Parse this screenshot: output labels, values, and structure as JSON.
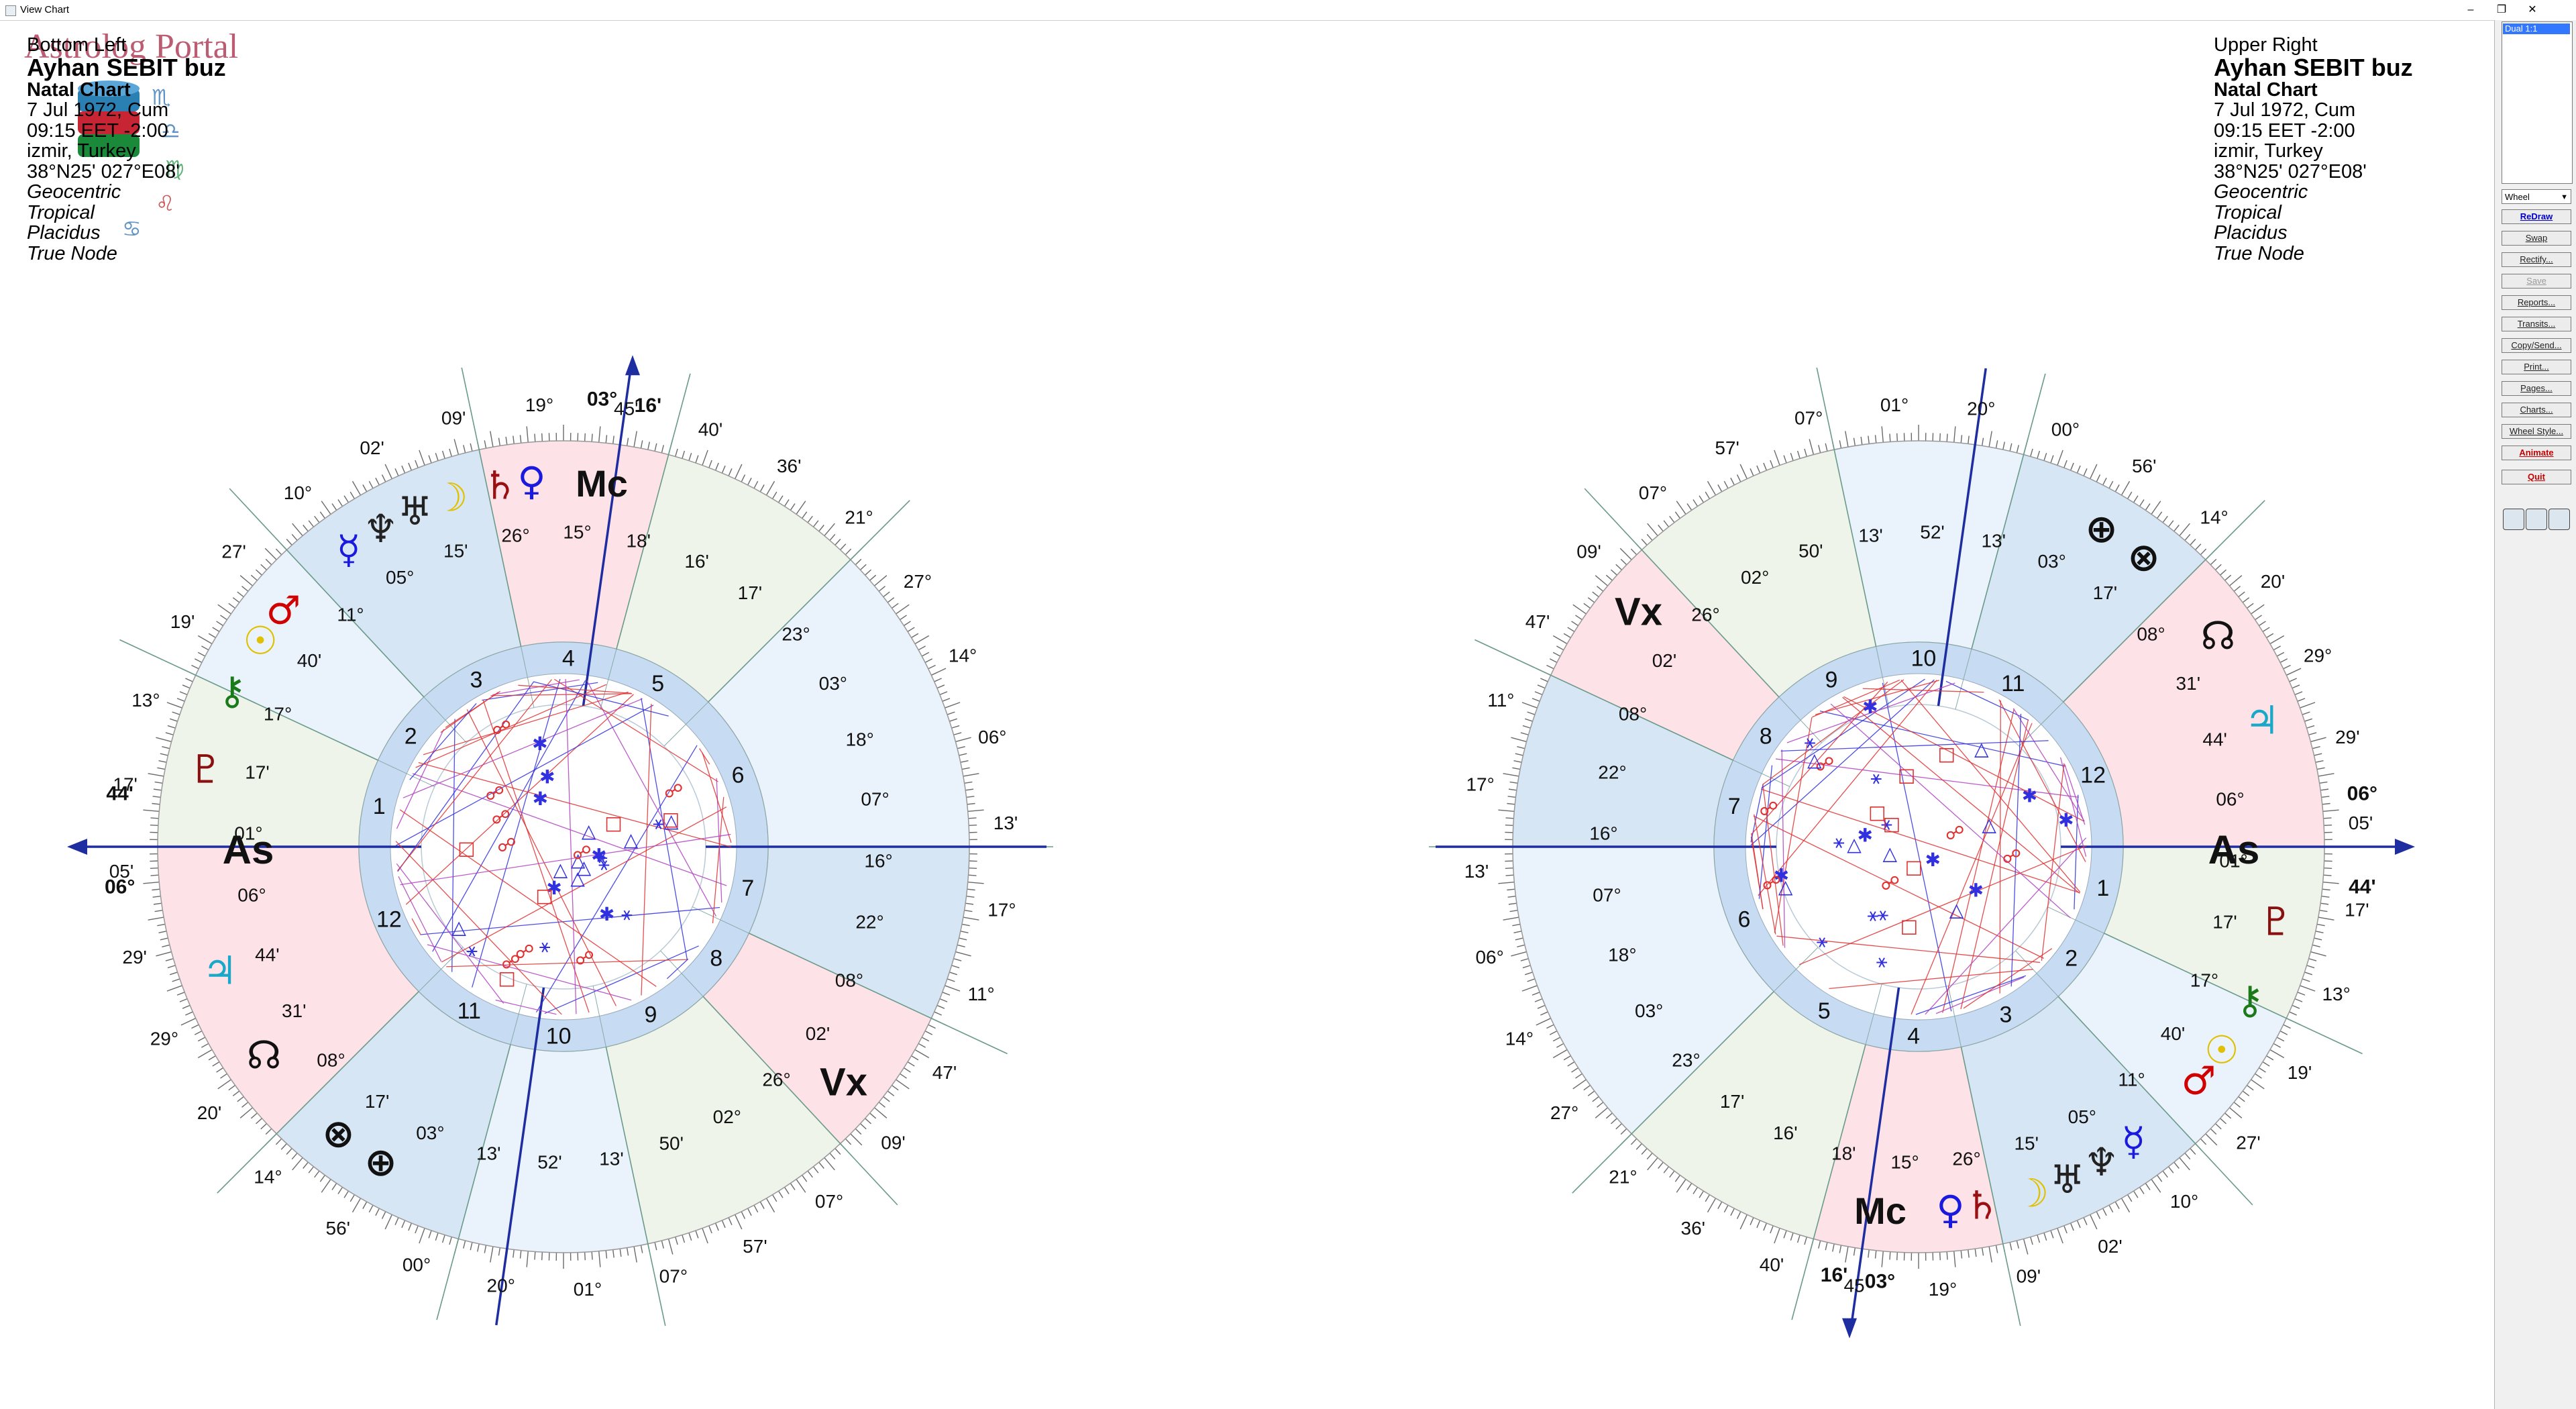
{
  "window": {
    "title": "View Chart",
    "minimize": "–",
    "restore": "❐",
    "close": "✕"
  },
  "logo": {
    "text": "Astrolog Portal"
  },
  "left_info": {
    "position_label": "Bottom Left",
    "name": "Ayhan SEBIT buz",
    "chart_type": "Natal Chart",
    "date": "7 Jul 1972, Cum",
    "time": "09:15  EET -2:00",
    "place": "izmir, Turkey",
    "coords": "38°N25' 027°E08'",
    "zodiac_view": "Geocentric",
    "zodiac": "Tropical",
    "houses": "Placidus",
    "node": "True Node"
  },
  "right_info": {
    "position_label": "Upper Right",
    "name": "Ayhan SEBIT buz",
    "chart_type": "Natal Chart",
    "date": "7 Jul 1972, Cum",
    "time": "09:15  EET -2:00",
    "place": "izmir, Turkey",
    "coords": "38°N25' 027°E08'",
    "zodiac_view": "Geocentric",
    "zodiac": "Tropical",
    "houses": "Placidus",
    "node": "True Node"
  },
  "panel": {
    "list_selected": "Dual 1:1",
    "view_select": "Wheel",
    "buttons": [
      {
        "label": "ReDraw",
        "style": "blue"
      },
      {
        "label": "Swap",
        "style": ""
      },
      {
        "label": "Rectify...",
        "style": ""
      },
      {
        "label": "Save",
        "style": "dis"
      },
      {
        "label": "Reports...",
        "style": ""
      },
      {
        "label": "Transits...",
        "style": ""
      },
      {
        "label": "Copy/Send...",
        "style": ""
      },
      {
        "label": "Print...",
        "style": ""
      },
      {
        "label": "Pages...",
        "style": ""
      },
      {
        "label": "Charts...",
        "style": ""
      },
      {
        "label": "Wheel Style...",
        "style": ""
      },
      {
        "label": "Animate",
        "style": "red"
      },
      {
        "label": "Quit",
        "style": "red"
      }
    ]
  },
  "colors": {
    "fire": "#fde2e8",
    "earth": "#eef4ea",
    "air": "#eaf2fb",
    "water": "#d7e6f4",
    "ring": "#c7dcf2",
    "axis": "#1e2da0",
    "planet_red": "#d00000",
    "planet_blue": "#1a1adf",
    "aspect_red": "#e03030",
    "aspect_blue": "#3030e0"
  },
  "charts": [
    {
      "id": "left",
      "houses": [
        "1",
        "2",
        "3",
        "4",
        "5",
        "6",
        "7",
        "8",
        "9",
        "10",
        "11",
        "12"
      ],
      "asc_text": "As",
      "mc_text": "Mc",
      "vx_text": "Vx",
      "asc_degree": "06°",
      "asc_minute": "44'",
      "mc_degree": "03°",
      "mc_minute": "16'",
      "labels": [
        "♀",
        "♄",
        "☽",
        "♅",
        "♆",
        "☿",
        "♂",
        "☉",
        "⚷",
        "♇",
        "♃",
        "☊",
        "⊗",
        "⊕"
      ],
      "numbers": [
        "18°",
        "14°",
        "03°",
        "27°",
        "23°",
        "21°",
        "17'",
        "36'",
        "16'",
        "40'",
        "18'",
        "45'",
        "15°",
        "19°",
        "26°",
        "09'",
        "15'",
        "02'",
        "05°",
        "10°",
        "11°",
        "27'",
        "40'",
        "19'",
        "17°",
        "13°",
        "17'",
        "17'",
        "01°",
        "05'",
        "06°",
        "29'",
        "44'",
        "29°",
        "31'",
        "20'",
        "08°",
        "14°",
        "17'",
        "56'",
        "03°",
        "00°",
        "13'",
        "20°",
        "52'",
        "01°",
        "13'",
        "07°",
        "50'",
        "57'",
        "02°",
        "07°",
        "26°",
        "09'",
        "02'",
        "47'",
        "08°",
        "11°",
        "22°",
        "17°",
        "16°",
        "13'",
        "07°",
        "06°"
      ]
    },
    {
      "id": "right",
      "houses": [
        "1",
        "2",
        "3",
        "4",
        "5",
        "6",
        "7",
        "8",
        "9",
        "10",
        "11",
        "12"
      ],
      "asc_text": "As",
      "mc_text": "Mc",
      "vx_text": "Vx",
      "asc_degree": "06°",
      "asc_minute": "44'",
      "mc_degree": "03°",
      "mc_minute": "16'",
      "labels": [
        "♀",
        "♄",
        "☽",
        "♅",
        "♆",
        "☿",
        "♂",
        "☉",
        "⚷",
        "♇",
        "♃",
        "☊",
        "⊗",
        "⊕"
      ],
      "numbers": [
        "18°",
        "14°",
        "03°",
        "27°",
        "23°",
        "21°",
        "17'",
        "36'",
        "16'",
        "40'",
        "18'",
        "45'",
        "15°",
        "19°",
        "26°",
        "09'",
        "15'",
        "02'",
        "05°",
        "10°",
        "11°",
        "27'",
        "40'",
        "19'",
        "17°",
        "13°",
        "17'",
        "17'",
        "01°",
        "05'",
        "06°",
        "29'",
        "44'",
        "29°",
        "31'",
        "20'",
        "08°",
        "14°",
        "17'",
        "56'",
        "03°",
        "00°",
        "13'",
        "20°",
        "52'",
        "01°",
        "13'",
        "07°",
        "50'",
        "57'",
        "02°",
        "07°",
        "26°",
        "09'",
        "02'",
        "47'",
        "08°",
        "11°",
        "22°",
        "17°",
        "16°",
        "13'",
        "07°",
        "06°"
      ]
    }
  ]
}
